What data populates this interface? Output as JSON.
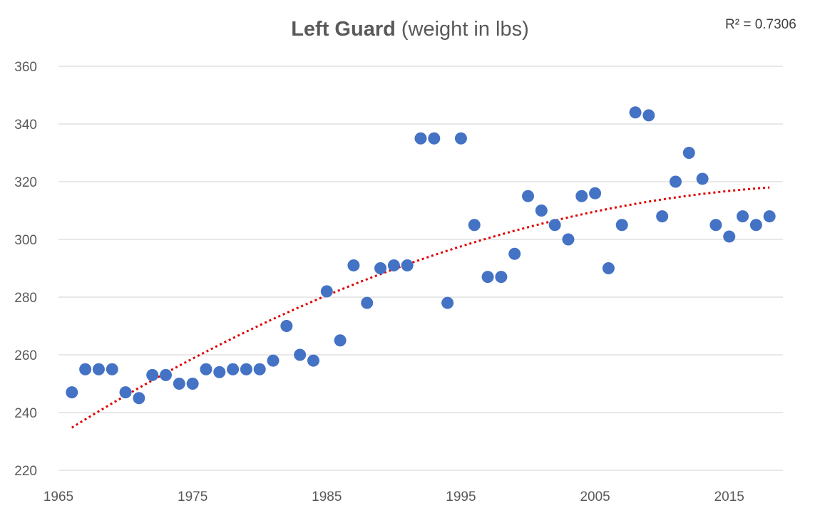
{
  "chart_data": {
    "type": "scatter",
    "title_bold": "Left Guard",
    "title_rest": " (weight in lbs)",
    "annotation": "R² = 0.7306",
    "xlabel": "",
    "ylabel": "",
    "xlim": [
      1965,
      2019
    ],
    "ylim": [
      220,
      360
    ],
    "x_ticks": [
      1965,
      1975,
      1985,
      1995,
      2005,
      2015
    ],
    "y_ticks": [
      220,
      240,
      260,
      280,
      300,
      320,
      340,
      360
    ],
    "grid": true,
    "legend": "none",
    "colors": {
      "points": "#4472C4",
      "trendline": "#E00000",
      "grid": "#D9D9D9",
      "text": "#595959"
    },
    "trendline": {
      "style": "dotted",
      "x_start": 1966,
      "x_end": 2018,
      "r_squared": 0.7306
    },
    "series": [
      {
        "points": [
          [
            1966,
            247
          ],
          [
            1967,
            255
          ],
          [
            1968,
            255
          ],
          [
            1969,
            255
          ],
          [
            1970,
            247
          ],
          [
            1971,
            245
          ],
          [
            1972,
            253
          ],
          [
            1973,
            253
          ],
          [
            1974,
            250
          ],
          [
            1975,
            250
          ],
          [
            1976,
            255
          ],
          [
            1977,
            254
          ],
          [
            1978,
            255
          ],
          [
            1979,
            255
          ],
          [
            1980,
            255
          ],
          [
            1981,
            258
          ],
          [
            1982,
            270
          ],
          [
            1983,
            260
          ],
          [
            1984,
            258
          ],
          [
            1985,
            282
          ],
          [
            1986,
            265
          ],
          [
            1987,
            291
          ],
          [
            1988,
            278
          ],
          [
            1989,
            290
          ],
          [
            1990,
            291
          ],
          [
            1991,
            291
          ],
          [
            1992,
            335
          ],
          [
            1993,
            335
          ],
          [
            1994,
            278
          ],
          [
            1995,
            335
          ],
          [
            1996,
            305
          ],
          [
            1997,
            287
          ],
          [
            1998,
            287
          ],
          [
            1999,
            295
          ],
          [
            2000,
            315
          ],
          [
            2001,
            310
          ],
          [
            2002,
            305
          ],
          [
            2003,
            300
          ],
          [
            2004,
            315
          ],
          [
            2005,
            316
          ],
          [
            2006,
            290
          ],
          [
            2007,
            305
          ],
          [
            2008,
            344
          ],
          [
            2009,
            343
          ],
          [
            2010,
            308
          ],
          [
            2011,
            320
          ],
          [
            2012,
            330
          ],
          [
            2013,
            321
          ],
          [
            2014,
            305
          ],
          [
            2015,
            301
          ],
          [
            2016,
            308
          ],
          [
            2017,
            305
          ],
          [
            2018,
            308
          ]
        ]
      }
    ]
  }
}
